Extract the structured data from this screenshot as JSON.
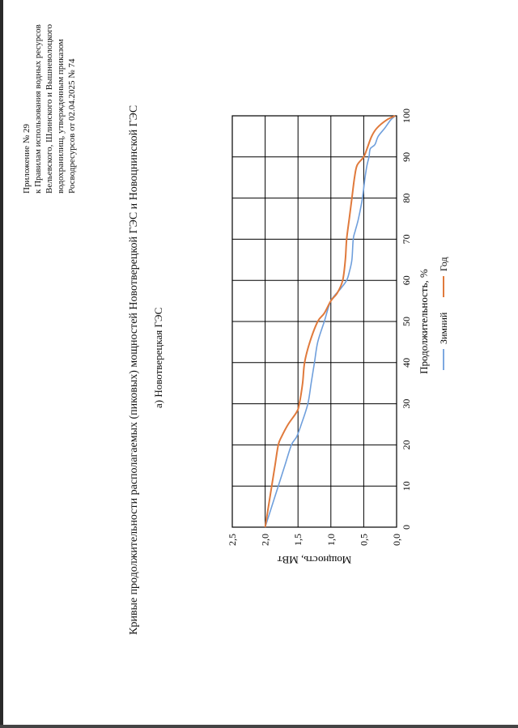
{
  "header": {
    "lines": [
      "Приложение № 29",
      "к Правилам использования водных ресурсов",
      "Вельевского, Шлинского и Вышневолоцкого",
      "водохранилищ, утвержденным приказом",
      "Росводресурсов от 02.04.2025 № 74"
    ]
  },
  "main_title": "Кривые продолжительности располагаемых (пиковых) мощностей Новотверецкой ГЭС и Новоцнинской ГЭС",
  "subtitle": "а) Новотверецкая ГЭС",
  "colors": {
    "winter": "#6f9fdc",
    "year": "#e07a3c",
    "grid": "#000000"
  },
  "chart_data": {
    "type": "line",
    "title": "а) Новотверецкая ГЭС",
    "xlabel": "Продолжительность, %",
    "ylabel": "Мощность, МВт",
    "xlim": [
      0,
      100
    ],
    "ylim": [
      0,
      2.5
    ],
    "xticks": [
      "0",
      "10",
      "20",
      "30",
      "40",
      "50",
      "60",
      "70",
      "80",
      "90",
      "100"
    ],
    "yticks": [
      "0,0",
      "0,5",
      "1,0",
      "1,5",
      "2,0",
      "2,5"
    ],
    "legend_position": "bottom",
    "series": [
      {
        "name": "Зимний",
        "x": [
          0,
          5,
          10,
          15,
          20,
          22,
          25,
          30,
          35,
          40,
          45,
          50,
          55,
          58,
          60,
          62,
          65,
          70,
          72,
          75,
          80,
          85,
          88,
          90,
          92,
          93,
          95,
          97,
          99,
          100
        ],
        "y": [
          2.0,
          1.9,
          1.8,
          1.7,
          1.6,
          1.52,
          1.45,
          1.35,
          1.3,
          1.25,
          1.2,
          1.1,
          1.0,
          0.85,
          0.76,
          0.72,
          0.68,
          0.66,
          0.63,
          0.58,
          0.52,
          0.48,
          0.45,
          0.42,
          0.4,
          0.33,
          0.28,
          0.18,
          0.09,
          0.02
        ]
      },
      {
        "name": "Год",
        "x": [
          0,
          5,
          10,
          15,
          20,
          22,
          25,
          28,
          30,
          35,
          40,
          45,
          50,
          52,
          55,
          57,
          60,
          65,
          70,
          75,
          80,
          85,
          88,
          90,
          92,
          95,
          97,
          99,
          100
        ],
        "y": [
          2.0,
          1.95,
          1.9,
          1.85,
          1.8,
          1.75,
          1.65,
          1.52,
          1.48,
          1.43,
          1.4,
          1.32,
          1.2,
          1.1,
          1.0,
          0.9,
          0.82,
          0.78,
          0.76,
          0.72,
          0.68,
          0.64,
          0.6,
          0.5,
          0.45,
          0.38,
          0.3,
          0.15,
          0.02
        ]
      }
    ]
  }
}
